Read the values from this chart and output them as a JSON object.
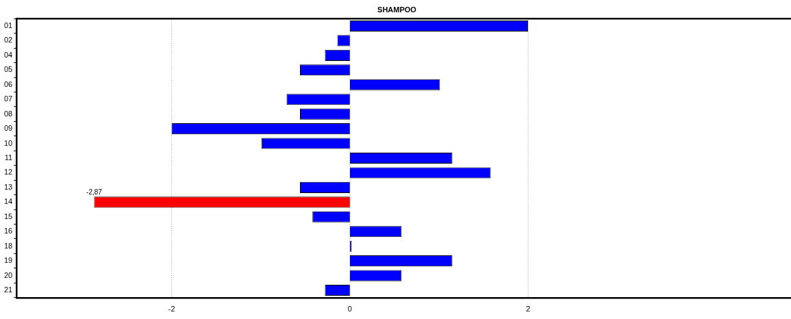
{
  "chart_data": {
    "type": "bar",
    "orientation": "horizontal",
    "title": "SHAMPOO",
    "categories": [
      "01",
      "02",
      "04",
      "05",
      "06",
      "07",
      "08",
      "09",
      "10",
      "11",
      "12",
      "13",
      "14",
      "15",
      "16",
      "18",
      "19",
      "20",
      "21"
    ],
    "values": [
      2.0,
      -0.14,
      -0.28,
      -0.56,
      1.01,
      -0.71,
      -0.56,
      -2.0,
      -0.99,
      1.15,
      1.58,
      -0.56,
      -2.87,
      -0.42,
      0.58,
      0.02,
      1.15,
      0.58,
      -0.28
    ],
    "colors": [
      "#0000ff",
      "#0000ff",
      "#0000ff",
      "#0000ff",
      "#0000ff",
      "#0000ff",
      "#0000ff",
      "#0000ff",
      "#0000ff",
      "#0000ff",
      "#0000ff",
      "#0000ff",
      "#ff0000",
      "#0000ff",
      "#0000ff",
      "#0000ff",
      "#0000ff",
      "#0000ff",
      "#0000ff"
    ],
    "value_labels": [
      null,
      null,
      null,
      null,
      null,
      null,
      null,
      null,
      null,
      null,
      null,
      null,
      "-2,87",
      null,
      null,
      null,
      null,
      null,
      null
    ],
    "xlim": [
      -3.74,
      4.95
    ],
    "xticks": [
      -2,
      0,
      2
    ],
    "grid": "x",
    "legend": false
  }
}
